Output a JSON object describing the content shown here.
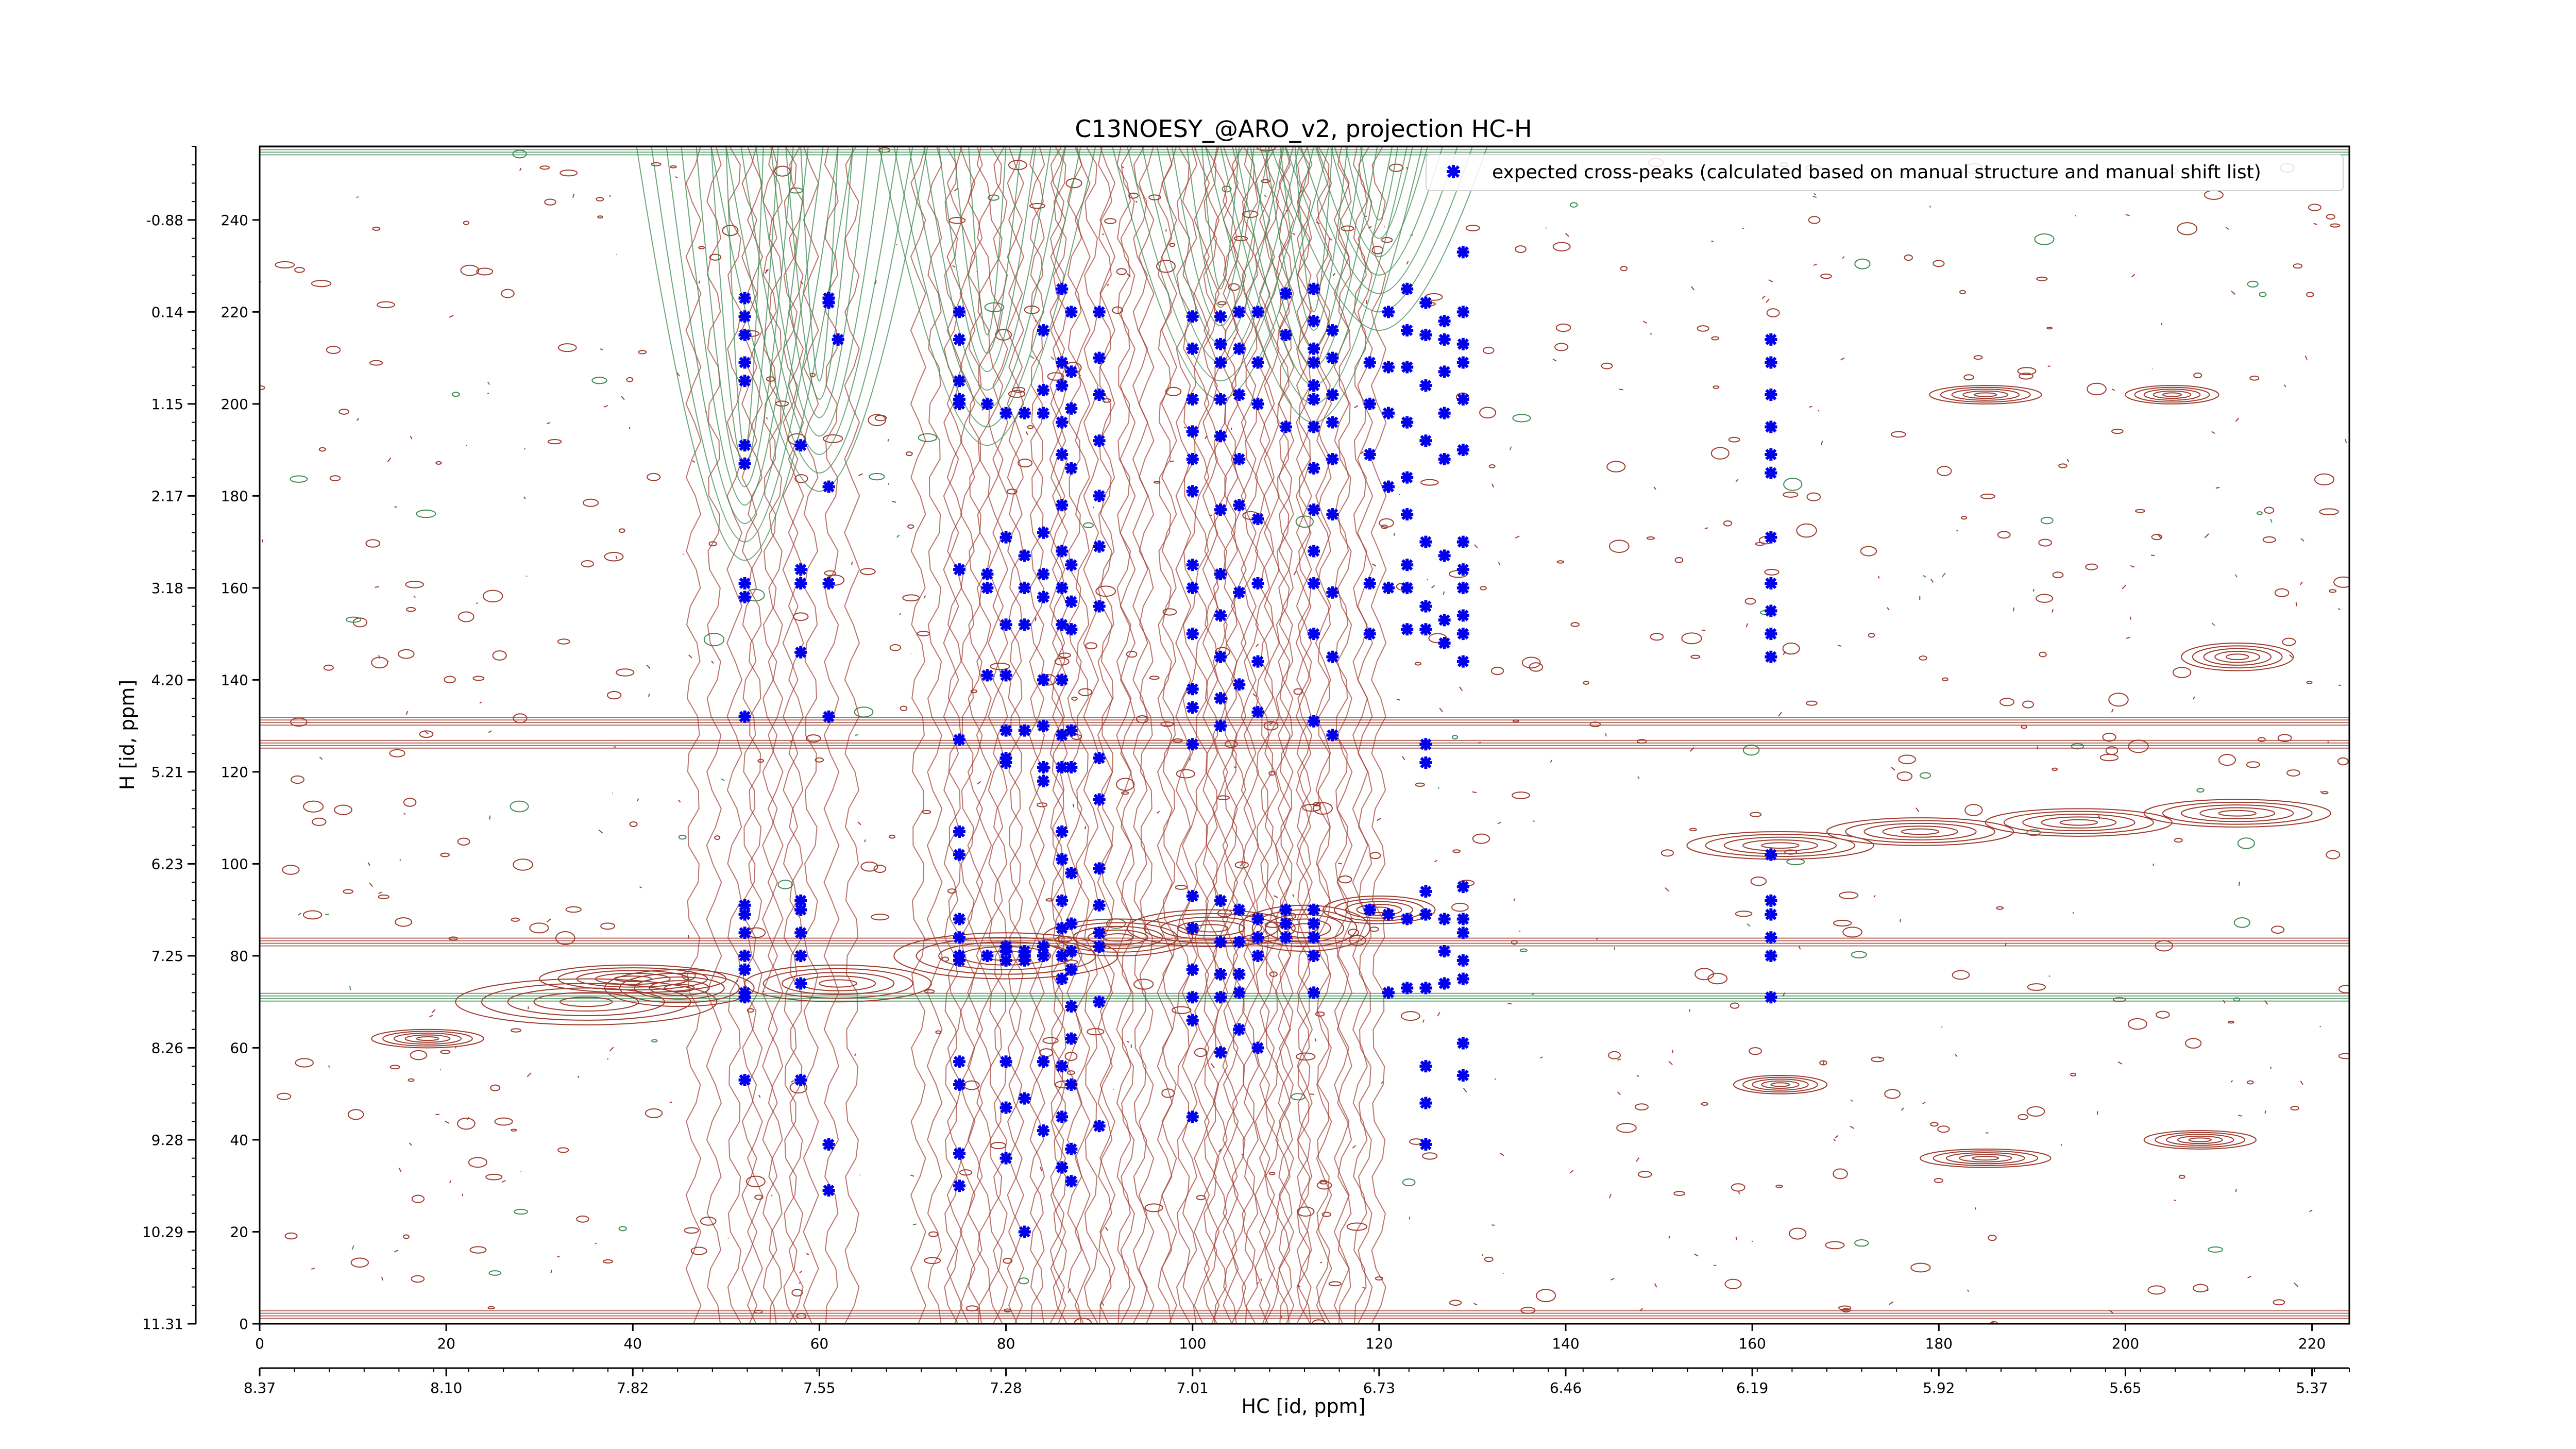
{
  "chart_data": {
    "type": "scatter",
    "title": "C13NOESY_@ARO_v2, projection HC-H",
    "xlabel": "HC [id, ppm]",
    "ylabel": "H [id, ppm]",
    "xlim": [
      0,
      224
    ],
    "ylim": [
      0,
      256
    ],
    "x_ticks_index": [
      "0",
      "20",
      "40",
      "60",
      "80",
      "100",
      "120",
      "140",
      "160",
      "180",
      "200",
      "220"
    ],
    "x_ticks_ppm": [
      "8.37",
      "8.10",
      "7.82",
      "7.55",
      "7.28",
      "7.01",
      "6.73",
      "6.46",
      "6.19",
      "5.92",
      "5.65",
      "5.37"
    ],
    "y_ticks_index": [
      "0",
      "20",
      "40",
      "60",
      "80",
      "100",
      "120",
      "140",
      "160",
      "180",
      "200",
      "220",
      "240"
    ],
    "y_ticks_ppm": [
      "11.31",
      "10.29",
      "9.28",
      "8.26",
      "7.25",
      "6.23",
      "5.21",
      "4.20",
      "3.18",
      "2.17",
      "1.15",
      "0.14",
      "-0.88"
    ],
    "legend": {
      "label": "expected cross-peaks (calculated based on manual structure and manual shift list)",
      "position": "top-right"
    },
    "grid": false,
    "colors": {
      "marker": "#0000ee",
      "positive_contour": "#9e3b2e",
      "negative_contour": "#3e8a52"
    },
    "series": [
      {
        "values": [
          [
            52,
            223
          ],
          [
            52,
            219
          ],
          [
            52,
            215
          ],
          [
            52,
            209
          ],
          [
            52,
            205
          ],
          [
            52,
            191
          ],
          [
            52,
            187
          ],
          [
            52,
            161
          ],
          [
            52,
            158
          ],
          [
            52,
            132
          ],
          [
            52,
            91
          ],
          [
            52,
            89
          ],
          [
            52,
            85
          ],
          [
            52,
            80
          ],
          [
            52,
            77
          ],
          [
            52,
            72
          ],
          [
            52,
            71
          ],
          [
            52,
            53
          ],
          [
            58,
            191
          ],
          [
            58,
            146
          ],
          [
            58,
            164
          ],
          [
            58,
            161
          ],
          [
            58,
            92
          ],
          [
            58,
            90
          ],
          [
            58,
            85
          ],
          [
            58,
            80
          ],
          [
            58,
            74
          ],
          [
            58,
            53
          ],
          [
            61,
            223
          ],
          [
            61,
            222
          ],
          [
            61,
            182
          ],
          [
            61,
            161
          ],
          [
            61,
            132
          ],
          [
            61,
            39
          ],
          [
            61,
            29
          ],
          [
            62,
            214
          ],
          [
            75,
            220
          ],
          [
            75,
            214
          ],
          [
            75,
            205
          ],
          [
            75,
            201
          ],
          [
            75,
            200
          ],
          [
            75,
            164
          ],
          [
            75,
            127
          ],
          [
            75,
            107
          ],
          [
            75,
            102
          ],
          [
            75,
            88
          ],
          [
            75,
            84
          ],
          [
            75,
            80
          ],
          [
            75,
            79
          ],
          [
            75,
            57
          ],
          [
            75,
            52
          ],
          [
            75,
            37
          ],
          [
            75,
            30
          ],
          [
            78,
            200
          ],
          [
            78,
            163
          ],
          [
            78,
            160
          ],
          [
            78,
            141
          ],
          [
            78,
            80
          ],
          [
            80,
            198
          ],
          [
            80,
            171
          ],
          [
            80,
            152
          ],
          [
            80,
            141
          ],
          [
            80,
            129
          ],
          [
            80,
            123
          ],
          [
            80,
            122
          ],
          [
            80,
            82
          ],
          [
            80,
            81
          ],
          [
            80,
            79
          ],
          [
            80,
            57
          ],
          [
            80,
            47
          ],
          [
            80,
            36
          ],
          [
            82,
            198
          ],
          [
            82,
            167
          ],
          [
            82,
            160
          ],
          [
            82,
            152
          ],
          [
            82,
            129
          ],
          [
            82,
            81
          ],
          [
            82,
            80
          ],
          [
            82,
            79
          ],
          [
            82,
            49
          ],
          [
            82,
            20
          ],
          [
            84,
            216
          ],
          [
            84,
            203
          ],
          [
            84,
            198
          ],
          [
            84,
            172
          ],
          [
            84,
            163
          ],
          [
            84,
            158
          ],
          [
            84,
            140
          ],
          [
            84,
            130
          ],
          [
            84,
            121
          ],
          [
            84,
            118
          ],
          [
            84,
            82
          ],
          [
            84,
            80
          ],
          [
            84,
            57
          ],
          [
            84,
            42
          ],
          [
            86,
            225
          ],
          [
            86,
            209
          ],
          [
            86,
            204
          ],
          [
            86,
            196
          ],
          [
            86,
            189
          ],
          [
            86,
            178
          ],
          [
            86,
            168
          ],
          [
            86,
            160
          ],
          [
            86,
            152
          ],
          [
            86,
            140
          ],
          [
            86,
            128
          ],
          [
            86,
            121
          ],
          [
            86,
            107
          ],
          [
            86,
            101
          ],
          [
            86,
            92
          ],
          [
            86,
            86
          ],
          [
            86,
            80
          ],
          [
            86,
            75
          ],
          [
            86,
            56
          ],
          [
            86,
            45
          ],
          [
            86,
            34
          ],
          [
            87,
            220
          ],
          [
            87,
            207
          ],
          [
            87,
            199
          ],
          [
            87,
            186
          ],
          [
            87,
            165
          ],
          [
            87,
            157
          ],
          [
            87,
            151
          ],
          [
            87,
            129
          ],
          [
            87,
            121
          ],
          [
            87,
            98
          ],
          [
            87,
            87
          ],
          [
            87,
            81
          ],
          [
            87,
            77
          ],
          [
            87,
            69
          ],
          [
            87,
            62
          ],
          [
            87,
            52
          ],
          [
            87,
            38
          ],
          [
            87,
            31
          ],
          [
            90,
            220
          ],
          [
            90,
            210
          ],
          [
            90,
            202
          ],
          [
            90,
            192
          ],
          [
            90,
            180
          ],
          [
            90,
            169
          ],
          [
            90,
            156
          ],
          [
            90,
            123
          ],
          [
            90,
            114
          ],
          [
            90,
            99
          ],
          [
            90,
            91
          ],
          [
            90,
            85
          ],
          [
            90,
            82
          ],
          [
            90,
            70
          ],
          [
            90,
            43
          ],
          [
            100,
            219
          ],
          [
            100,
            212
          ],
          [
            100,
            201
          ],
          [
            100,
            194
          ],
          [
            100,
            188
          ],
          [
            100,
            181
          ],
          [
            100,
            165
          ],
          [
            100,
            160
          ],
          [
            100,
            150
          ],
          [
            100,
            138
          ],
          [
            100,
            134
          ],
          [
            100,
            126
          ],
          [
            100,
            93
          ],
          [
            100,
            86
          ],
          [
            100,
            77
          ],
          [
            100,
            71
          ],
          [
            100,
            66
          ],
          [
            100,
            45
          ],
          [
            103,
            219
          ],
          [
            103,
            213
          ],
          [
            103,
            209
          ],
          [
            103,
            201
          ],
          [
            103,
            193
          ],
          [
            103,
            177
          ],
          [
            103,
            163
          ],
          [
            103,
            154
          ],
          [
            103,
            145
          ],
          [
            103,
            136
          ],
          [
            103,
            130
          ],
          [
            103,
            92
          ],
          [
            103,
            83
          ],
          [
            103,
            76
          ],
          [
            103,
            71
          ],
          [
            103,
            59
          ],
          [
            105,
            220
          ],
          [
            105,
            212
          ],
          [
            105,
            202
          ],
          [
            105,
            188
          ],
          [
            105,
            178
          ],
          [
            105,
            159
          ],
          [
            105,
            139
          ],
          [
            105,
            90
          ],
          [
            105,
            83
          ],
          [
            105,
            76
          ],
          [
            105,
            72
          ],
          [
            105,
            64
          ],
          [
            107,
            220
          ],
          [
            107,
            209
          ],
          [
            107,
            200
          ],
          [
            107,
            175
          ],
          [
            107,
            161
          ],
          [
            107,
            144
          ],
          [
            107,
            133
          ],
          [
            107,
            88
          ],
          [
            107,
            84
          ],
          [
            107,
            80
          ],
          [
            107,
            60
          ],
          [
            110,
            224
          ],
          [
            110,
            215
          ],
          [
            110,
            195
          ],
          [
            110,
            90
          ],
          [
            110,
            87
          ],
          [
            110,
            84
          ],
          [
            113,
            225
          ],
          [
            113,
            218
          ],
          [
            113,
            212
          ],
          [
            113,
            209
          ],
          [
            113,
            204
          ],
          [
            113,
            201
          ],
          [
            113,
            195
          ],
          [
            113,
            186
          ],
          [
            113,
            177
          ],
          [
            113,
            168
          ],
          [
            113,
            161
          ],
          [
            113,
            150
          ],
          [
            113,
            131
          ],
          [
            113,
            90
          ],
          [
            113,
            87
          ],
          [
            113,
            84
          ],
          [
            113,
            80
          ],
          [
            113,
            72
          ],
          [
            115,
            216
          ],
          [
            115,
            210
          ],
          [
            115,
            202
          ],
          [
            115,
            196
          ],
          [
            115,
            188
          ],
          [
            115,
            176
          ],
          [
            115,
            159
          ],
          [
            115,
            145
          ],
          [
            115,
            128
          ],
          [
            119,
            209
          ],
          [
            119,
            200
          ],
          [
            119,
            189
          ],
          [
            119,
            161
          ],
          [
            119,
            150
          ],
          [
            119,
            90
          ],
          [
            121,
            220
          ],
          [
            121,
            208
          ],
          [
            121,
            198
          ],
          [
            121,
            182
          ],
          [
            121,
            160
          ],
          [
            121,
            89
          ],
          [
            121,
            72
          ],
          [
            123,
            225
          ],
          [
            123,
            216
          ],
          [
            123,
            208
          ],
          [
            123,
            196
          ],
          [
            123,
            184
          ],
          [
            123,
            176
          ],
          [
            123,
            165
          ],
          [
            123,
            160
          ],
          [
            123,
            151
          ],
          [
            123,
            88
          ],
          [
            123,
            73
          ],
          [
            125,
            222
          ],
          [
            125,
            215
          ],
          [
            125,
            204
          ],
          [
            125,
            192
          ],
          [
            125,
            170
          ],
          [
            125,
            156
          ],
          [
            125,
            151
          ],
          [
            125,
            126
          ],
          [
            125,
            122
          ],
          [
            125,
            94
          ],
          [
            125,
            89
          ],
          [
            125,
            73
          ],
          [
            125,
            56
          ],
          [
            125,
            48
          ],
          [
            125,
            39
          ],
          [
            127,
            218
          ],
          [
            127,
            214
          ],
          [
            127,
            207
          ],
          [
            127,
            198
          ],
          [
            127,
            188
          ],
          [
            127,
            167
          ],
          [
            127,
            153
          ],
          [
            127,
            148
          ],
          [
            127,
            88
          ],
          [
            127,
            81
          ],
          [
            127,
            74
          ],
          [
            129,
            233
          ],
          [
            129,
            220
          ],
          [
            129,
            213
          ],
          [
            129,
            209
          ],
          [
            129,
            201
          ],
          [
            129,
            190
          ],
          [
            129,
            170
          ],
          [
            129,
            164
          ],
          [
            129,
            160
          ],
          [
            129,
            154
          ],
          [
            129,
            150
          ],
          [
            129,
            144
          ],
          [
            129,
            95
          ],
          [
            129,
            88
          ],
          [
            129,
            85
          ],
          [
            129,
            79
          ],
          [
            129,
            75
          ],
          [
            129,
            61
          ],
          [
            129,
            54
          ],
          [
            162,
            214
          ],
          [
            162,
            209
          ],
          [
            162,
            202
          ],
          [
            162,
            195
          ],
          [
            162,
            189
          ],
          [
            162,
            185
          ],
          [
            162,
            171
          ],
          [
            162,
            161
          ],
          [
            162,
            155
          ],
          [
            162,
            150
          ],
          [
            162,
            145
          ],
          [
            162,
            102
          ],
          [
            162,
            92
          ],
          [
            162,
            89
          ],
          [
            162,
            84
          ],
          [
            162,
            80
          ],
          [
            162,
            71
          ]
        ]
      }
    ]
  }
}
